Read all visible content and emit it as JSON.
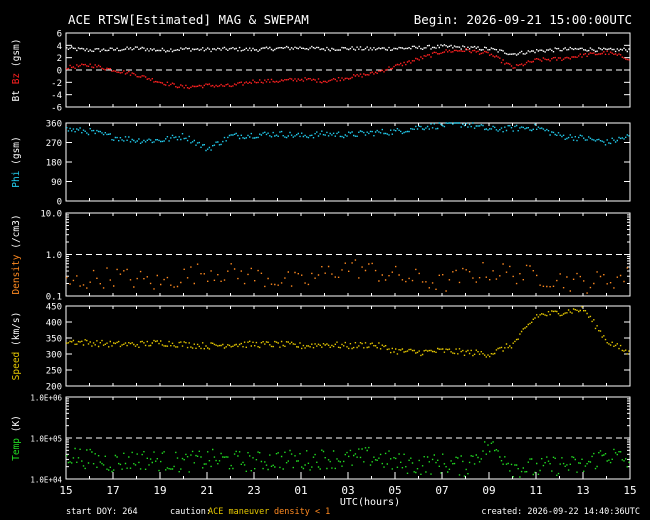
{
  "header": {
    "title": "ACE RTSW[Estimated] MAG & SWEPAM",
    "begin": "Begin: 2026-09-21 15:00:00UTC"
  },
  "footer": {
    "start_doy": "start DOY: 264",
    "caution_label": "caution:",
    "caution_maneuver": "ACE maneuver",
    "caution_density": "density < 1",
    "created": "created: 2026-09-22 14:40:36UTC"
  },
  "colors": {
    "bt": "#ffffff",
    "bz": "#ff2020",
    "phi": "#22ccee",
    "density": "#ff8a20",
    "speed": "#e6c800",
    "temp": "#22dd22",
    "caution_maneuver": "#e6c800",
    "caution_density": "#ff8a20"
  },
  "chart_data": [
    {
      "type": "scatter",
      "ylabel_parts": [
        "Bt",
        "Bz",
        "(gsm)"
      ],
      "ylim": [
        -6,
        6
      ],
      "yticks": [
        "6",
        "4",
        "2",
        "0",
        "-2",
        "-4",
        "-6"
      ],
      "reference_line": 0,
      "series": [
        {
          "name": "Bt",
          "x": [
            0,
            1,
            2,
            3,
            4,
            5,
            6,
            7,
            8,
            9,
            10,
            11,
            12,
            13,
            14,
            15,
            16,
            17,
            18,
            19,
            20,
            21,
            22,
            23,
            24
          ],
          "y": [
            3.5,
            3.2,
            3.3,
            3.5,
            3.2,
            3.4,
            3.3,
            3.4,
            3.3,
            3.5,
            3.6,
            3.4,
            3.5,
            3.4,
            3.5,
            3.6,
            3.8,
            3.6,
            3.4,
            2.6,
            3.1,
            3.3,
            3.4,
            3.2,
            3.3
          ]
        },
        {
          "name": "Bz",
          "x": [
            0,
            1,
            2,
            3,
            4,
            5,
            6,
            7,
            8,
            9,
            10,
            11,
            12,
            13,
            14,
            15,
            16,
            17,
            18,
            19,
            20,
            21,
            22,
            23,
            24
          ],
          "y": [
            0.4,
            0.8,
            0.0,
            -0.8,
            -2.0,
            -2.8,
            -2.5,
            -2.6,
            -1.8,
            -1.8,
            -1.5,
            -1.8,
            -1.2,
            -0.6,
            0.6,
            1.8,
            3.0,
            3.2,
            2.6,
            0.4,
            1.6,
            1.8,
            2.4,
            2.8,
            1.8
          ]
        }
      ]
    },
    {
      "type": "scatter",
      "ylabel_parts": [
        "Phi",
        "(gsm)"
      ],
      "ylim": [
        0,
        360
      ],
      "yticks": [
        "360",
        "270",
        "180",
        "90",
        "0"
      ],
      "series": [
        {
          "name": "Phi",
          "x": [
            0,
            1,
            2,
            3,
            4,
            5,
            6,
            7,
            8,
            9,
            10,
            11,
            12,
            13,
            14,
            15,
            16,
            17,
            18,
            19,
            20,
            21,
            22,
            23,
            24
          ],
          "y": [
            330,
            320,
            295,
            280,
            280,
            300,
            240,
            300,
            305,
            310,
            300,
            310,
            305,
            315,
            320,
            340,
            350,
            355,
            330,
            335,
            340,
            300,
            290,
            270,
            300
          ]
        }
      ]
    },
    {
      "type": "scatter",
      "ylabel_parts": [
        "Density",
        "(/cm3)"
      ],
      "yscale": "log",
      "ylim": [
        0.1,
        10
      ],
      "yticks": [
        "10.0",
        "1.0",
        "0.1"
      ],
      "reference_line": 1,
      "series": [
        {
          "name": "Density",
          "x": [
            0,
            2,
            4,
            6,
            8,
            10,
            12,
            14,
            16,
            18,
            20,
            22,
            24
          ],
          "y": [
            0.2,
            0.3,
            0.2,
            0.4,
            0.3,
            0.2,
            0.5,
            0.3,
            0.2,
            0.4,
            0.3,
            0.2,
            0.3
          ]
        }
      ]
    },
    {
      "type": "scatter",
      "ylabel_parts": [
        "Speed",
        "(km/s)"
      ],
      "ylim": [
        200,
        450
      ],
      "yticks": [
        "450",
        "400",
        "350",
        "300",
        "250",
        "200"
      ],
      "series": [
        {
          "name": "Speed",
          "x": [
            0,
            1,
            2,
            3,
            4,
            5,
            6,
            7,
            8,
            9,
            10,
            11,
            12,
            13,
            14,
            15,
            16,
            17,
            18,
            19,
            20,
            21,
            22,
            23,
            24
          ],
          "y": [
            340,
            335,
            330,
            330,
            335,
            330,
            325,
            330,
            330,
            330,
            325,
            330,
            325,
            330,
            310,
            305,
            310,
            305,
            300,
            330,
            420,
            430,
            440,
            340,
            300
          ]
        }
      ]
    },
    {
      "type": "scatter",
      "ylabel_parts": [
        "Temp",
        "(K)"
      ],
      "yscale": "log",
      "ylim": [
        10000,
        1000000
      ],
      "yticks": [
        "1.0E+06",
        "1.0E+05",
        "1.0E+04"
      ],
      "reference_line": 100000,
      "xlabel": "UTC(hours)",
      "xticks": [
        "15",
        "17",
        "19",
        "21",
        "23",
        "01",
        "03",
        "05",
        "07",
        "09",
        "11",
        "13",
        "15"
      ],
      "series": [
        {
          "name": "Temp",
          "x": [
            0,
            1,
            2,
            3,
            4,
            5,
            6,
            7,
            8,
            9,
            10,
            11,
            12,
            13,
            14,
            15,
            16,
            17,
            18,
            19,
            20,
            21,
            22,
            23,
            24
          ],
          "y": [
            40000,
            30000,
            25000,
            30000,
            28000,
            25000,
            30000,
            28000,
            26000,
            30000,
            28000,
            32000,
            30000,
            35000,
            25000,
            22000,
            24000,
            20000,
            60000,
            20000,
            18000,
            22000,
            20000,
            40000,
            25000
          ]
        }
      ]
    }
  ]
}
